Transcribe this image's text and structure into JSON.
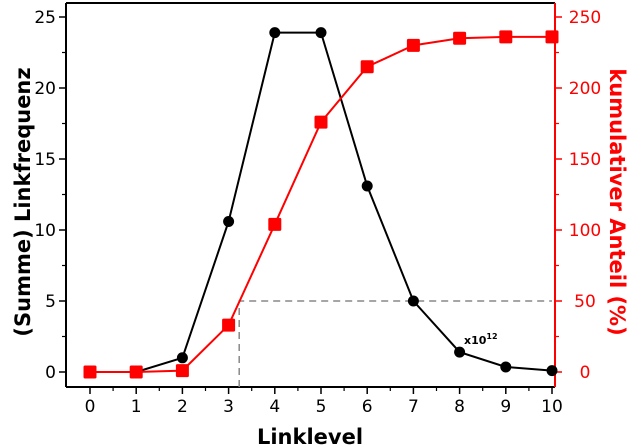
{
  "chart_data": {
    "type": "line",
    "xlabel": "Linklevel",
    "ylabel_left": "(Summe) Linkfrequenz",
    "ylabel_right": "kumulativer Anteil (%)",
    "multiplier_label": "x10",
    "multiplier_exponent": "12",
    "xlim": [
      -0.3,
      10
    ],
    "ylim_left": [
      -1,
      25
    ],
    "ylim_right": [
      -10,
      250
    ],
    "x_ticks": [
      0,
      1,
      2,
      3,
      4,
      5,
      6,
      7,
      8,
      9,
      10
    ],
    "y_left_ticks": [
      0,
      5,
      10,
      15,
      20,
      25
    ],
    "y_right_ticks": [
      0,
      50,
      100,
      150,
      200,
      250
    ],
    "grid": false,
    "x": [
      0,
      1,
      2,
      3,
      4,
      5,
      6,
      7,
      8,
      9,
      10
    ],
    "series": [
      {
        "axis": "left",
        "color": "#000000",
        "marker": "circle",
        "values": [
          0.0,
          0.0,
          1.0,
          10.6,
          23.9,
          23.9,
          13.1,
          5.0,
          1.4,
          0.35,
          0.1
        ]
      },
      {
        "axis": "right",
        "color": "#ff0000",
        "marker": "square",
        "values": [
          0,
          0,
          1,
          33,
          104,
          176,
          215,
          230,
          235,
          236,
          236
        ]
      }
    ],
    "annotations": [
      {
        "type": "dashed-line",
        "color": "#888888",
        "points": [
          [
            3.23,
            -1
          ],
          [
            3.23,
            5
          ],
          [
            10,
            5
          ]
        ]
      }
    ]
  }
}
